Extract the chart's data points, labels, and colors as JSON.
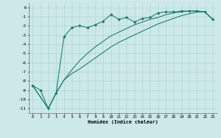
{
  "xlabel": "Humidex (Indice chaleur)",
  "ylabel": "",
  "bg_color": "#cce8e8",
  "grid_color": "#aed4d4",
  "line_color": "#1a7a6a",
  "xlim": [
    -0.5,
    23.5
  ],
  "ylim": [
    -11.5,
    0.5
  ],
  "xticks": [
    0,
    1,
    2,
    3,
    4,
    5,
    6,
    7,
    8,
    9,
    10,
    11,
    12,
    13,
    14,
    15,
    16,
    17,
    18,
    19,
    20,
    21,
    22,
    23
  ],
  "yticks": [
    0,
    -1,
    -2,
    -3,
    -4,
    -5,
    -6,
    -7,
    -8,
    -9,
    -10,
    -11
  ],
  "series1_x": [
    0,
    1,
    2,
    3,
    4,
    5,
    6,
    7,
    8,
    9,
    10,
    11,
    12,
    13,
    14,
    15,
    16,
    17,
    18,
    19,
    20,
    21,
    22,
    23
  ],
  "series1_y": [
    -8.5,
    -9.0,
    -11.0,
    -9.3,
    -3.2,
    -2.2,
    -2.0,
    -2.2,
    -1.9,
    -1.5,
    -0.8,
    -1.3,
    -1.1,
    -1.6,
    -1.2,
    -1.1,
    -0.6,
    -0.5,
    -0.5,
    -0.4,
    -0.4,
    -0.4,
    -0.5,
    -1.3
  ],
  "series2_x": [
    0,
    2,
    3,
    4,
    5,
    6,
    7,
    8,
    9,
    10,
    11,
    12,
    13,
    14,
    15,
    16,
    17,
    18,
    19,
    20,
    21,
    22,
    23
  ],
  "series2_y": [
    -8.5,
    -11.0,
    -9.3,
    -7.9,
    -7.2,
    -6.7,
    -6.1,
    -5.5,
    -4.9,
    -4.3,
    -3.8,
    -3.4,
    -3.0,
    -2.6,
    -2.2,
    -1.8,
    -1.5,
    -1.2,
    -0.9,
    -0.7,
    -0.5,
    -0.5,
    -1.3
  ],
  "series3_x": [
    0,
    2,
    3,
    4,
    5,
    6,
    7,
    8,
    9,
    10,
    11,
    12,
    13,
    14,
    15,
    16,
    17,
    18,
    19,
    20,
    21,
    22,
    23
  ],
  "series3_y": [
    -8.5,
    -11.0,
    -9.3,
    -7.9,
    -6.8,
    -5.8,
    -5.0,
    -4.3,
    -3.7,
    -3.1,
    -2.7,
    -2.3,
    -1.9,
    -1.6,
    -1.3,
    -1.1,
    -0.8,
    -0.6,
    -0.5,
    -0.4,
    -0.4,
    -0.5,
    -1.3
  ]
}
